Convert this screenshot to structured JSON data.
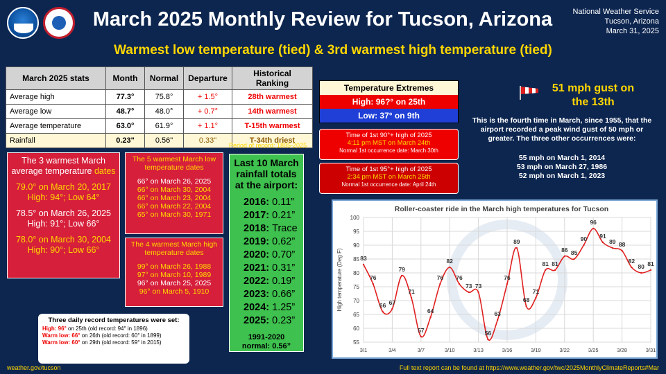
{
  "header": {
    "title": "March 2025 Monthly Review for Tucson, Arizona",
    "subtitle": "Warmest low temperature (tied) & 3rd warmest high temperature (tied)",
    "org_line1": "National Weather Service",
    "org_line2": "Tucson, Arizona",
    "org_line3": "March 31, 2025",
    "logos": [
      "noaa-logo",
      "nws-logo"
    ]
  },
  "stats_table": {
    "headers": [
      "March 2025 stats",
      "Month",
      "Normal",
      "Departure",
      "Historical Ranking"
    ],
    "rows": [
      {
        "label": "Average high",
        "month": "77.3°",
        "normal": "75.8°",
        "departure": "+ 1.5°",
        "ranking": "28th warmest"
      },
      {
        "label": "Average low",
        "month": "48.7°",
        "normal": "48.0°",
        "departure": "+ 0.7°",
        "ranking": "14th warmest"
      },
      {
        "label": "Average temperature",
        "month": "63.0°",
        "normal": "61.9°",
        "departure": "+ 1.1°",
        "ranking": "T-15th warmest"
      },
      {
        "label": "Rainfall",
        "month": "0.23\"",
        "normal": "0.56\"",
        "departure": "0.33\"",
        "ranking": "T-34th driest"
      }
    ],
    "period": "Period of record: 1895-2025"
  },
  "warmest_avg": {
    "title": "The 3 warmest March average  temperature",
    "title_dates": "dates",
    "items": [
      {
        "line1": "79.0° on March 20, 2017",
        "line2": "High: 94°; Low 64°",
        "color": "#ffd700"
      },
      {
        "line1": "78.5° on March 26, 2025",
        "line2": "High: 91°; Low 66°",
        "color": "#ffffff"
      },
      {
        "line1": "78.0° on March 30, 2004",
        "line2": "High: 90°; Low 66°",
        "color": "#ffd700"
      }
    ]
  },
  "warmest_low": {
    "title": "The 5 warmest March low temperature",
    "title_dates": "dates",
    "items": [
      {
        "text": "66° on March 26, 2025",
        "color": "#ffffff"
      },
      {
        "text": "66° on March 30, 2004",
        "color": "#ffd700"
      },
      {
        "text": "66° on March 23, 2004",
        "color": "#ffd700"
      },
      {
        "text": "66° on March 22, 2004",
        "color": "#ffd700"
      },
      {
        "text": "65° on March 30, 1971",
        "color": "#ffd700"
      }
    ]
  },
  "warmest_high": {
    "title": "The 4 warmest March high temperature",
    "title_dates": "dates",
    "items": [
      {
        "text": "99° on March 26, 1988",
        "color": "#ffd700"
      },
      {
        "text": "97° on March 10, 1989",
        "color": "#ffd700"
      },
      {
        "text": "96° on March 25, 2025",
        "color": "#ffffff"
      },
      {
        "text": "96° on March  5, 1910",
        "color": "#ffd700"
      }
    ]
  },
  "rainfall": {
    "title": "Last 10 March rainfall totals at the airport:",
    "years": [
      {
        "year": "2016:",
        "value": "0.11”"
      },
      {
        "year": "2017:",
        "value": "0.21”"
      },
      {
        "year": "2018:",
        "value": "Trace"
      },
      {
        "year": "2019:",
        "value": "0.62”"
      },
      {
        "year": "2020:",
        "value": "0.70”"
      },
      {
        "year": "2021:",
        "value": "0.31”"
      },
      {
        "year": "2022:",
        "value": "0.19”"
      },
      {
        "year": "2023:",
        "value": "0.66”"
      },
      {
        "year": "2024:",
        "value": "1.25”"
      },
      {
        "year": "2025:",
        "value": "0.23”"
      }
    ],
    "normal_line1": "1991-2020",
    "normal_line2": "normal: 0.56”"
  },
  "records": {
    "title": "Three daily record temperatures were set:",
    "items": [
      {
        "label": "High: 96°",
        "rest": " on 25th (old record: 94° in 1896)"
      },
      {
        "label": "Warm low: 66°",
        "rest": " on 26th (old record: 60° in 1899)"
      },
      {
        "label": "Warm low: 60°",
        "rest": " on 29th (old record: 59° in 2015)"
      }
    ]
  },
  "extremes": {
    "title": "Temperature Extremes",
    "high": "High: 96?° on 25th",
    "low": "Low: 37° on 9th"
  },
  "first90": {
    "line1": "Time of 1st 90°+ high of 2025",
    "line2": "4:11 pm MST on March 24th",
    "line3": "Normal 1st occurrence date: March 30th"
  },
  "first95": {
    "line1": "Time of 1st 95°+ high of 2025",
    "line2": "2:34 pm MST on March 25th",
    "line3": "Normal 1st occurrence date: April 24th"
  },
  "gust": {
    "headline": "51 mph gust on the 13th",
    "text": "This is the fourth time in March, since 1955, that the airport recorded a peak wind gust of 50 mph or greater. The three  other occurrences were:",
    "list": [
      "55 mph on March 1, 2014",
      "53 mph on March 27, 1986",
      "52 mph on March 1, 2023"
    ],
    "icon": "windsock-icon"
  },
  "footer": {
    "left": "weather.gov/tucson",
    "right": "Full text report can be found at https://www.weather.gov/twc/2025MonthlyClimateReports#Mar"
  },
  "colors": {
    "background": "#0d2650",
    "accent_yellow": "#ffd700",
    "box_red": "#d61f3a",
    "rain_green": "#3ec14e",
    "line_red": "#e02020"
  },
  "chart_data": {
    "type": "line",
    "title": "Roller-coaster ride in the March high temperatures for Tucson",
    "xlabel": "",
    "ylabel": "High temperature (Deg F)",
    "ylim": [
      55,
      100
    ],
    "yticks": [
      55,
      60,
      65,
      70,
      75,
      80,
      85,
      90,
      95,
      100
    ],
    "xtick_labels": [
      "3/1",
      "3/4",
      "3/7",
      "3/10",
      "3/13",
      "3/16",
      "3/19",
      "3/22",
      "3/25",
      "3/28",
      "3/31"
    ],
    "grid": true,
    "x": [
      1,
      2,
      3,
      4,
      5,
      6,
      7,
      8,
      9,
      10,
      11,
      12,
      13,
      14,
      15,
      16,
      17,
      18,
      19,
      20,
      21,
      22,
      23,
      24,
      25,
      26,
      27,
      28,
      29,
      30,
      31
    ],
    "series": [
      {
        "values": [
          83,
          76,
          66,
          67,
          79,
          71,
          57,
          64,
          76,
          82,
          76,
          73,
          73,
          56,
          63,
          76,
          89,
          68,
          71,
          81,
          81,
          86,
          85,
          90,
          96,
          91,
          89,
          88,
          82,
          80,
          81
        ],
        "color": "#e02020"
      }
    ]
  }
}
